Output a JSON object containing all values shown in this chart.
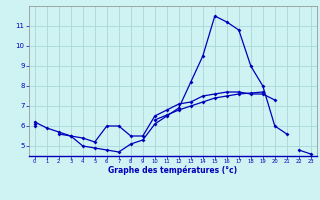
{
  "xlabel": "Graphe des températures (°c)",
  "background_color": "#cff2f2",
  "grid_color": "#a8d8d8",
  "line_color": "#0000bb",
  "x": [
    0,
    1,
    2,
    3,
    4,
    5,
    6,
    7,
    8,
    9,
    10,
    11,
    12,
    13,
    14,
    15,
    16,
    17,
    18,
    19,
    20,
    21,
    22,
    23
  ],
  "line1": [
    6.2,
    5.9,
    5.7,
    5.5,
    5.0,
    4.9,
    4.8,
    4.7,
    5.1,
    5.3,
    6.1,
    6.5,
    6.9,
    8.2,
    9.5,
    11.5,
    11.2,
    10.8,
    9.0,
    8.0,
    6.0,
    5.6,
    null,
    null
  ],
  "line2": [
    6.1,
    null,
    5.6,
    5.5,
    5.4,
    5.2,
    6.0,
    6.0,
    5.5,
    5.5,
    6.5,
    6.8,
    7.1,
    7.2,
    7.5,
    7.6,
    7.7,
    7.7,
    7.6,
    7.6,
    7.3,
    null,
    null,
    null
  ],
  "line3": [
    6.0,
    null,
    null,
    null,
    null,
    null,
    null,
    null,
    null,
    null,
    6.3,
    6.55,
    6.8,
    7.0,
    7.2,
    7.4,
    7.5,
    7.6,
    7.65,
    7.7,
    null,
    null,
    null,
    null
  ],
  "line4": [
    null,
    null,
    null,
    null,
    null,
    null,
    null,
    null,
    null,
    null,
    null,
    null,
    null,
    null,
    null,
    null,
    null,
    null,
    null,
    null,
    null,
    null,
    4.8,
    4.6
  ],
  "xlim": [
    -0.5,
    23.5
  ],
  "ylim": [
    4.5,
    12.0
  ],
  "yticks": [
    5,
    6,
    7,
    8,
    9,
    10,
    11
  ],
  "xticks": [
    0,
    1,
    2,
    3,
    4,
    5,
    6,
    7,
    8,
    9,
    10,
    11,
    12,
    13,
    14,
    15,
    16,
    17,
    18,
    19,
    20,
    21,
    22,
    23
  ],
  "marker": "D",
  "markersize": 2.0,
  "linewidth": 0.9
}
